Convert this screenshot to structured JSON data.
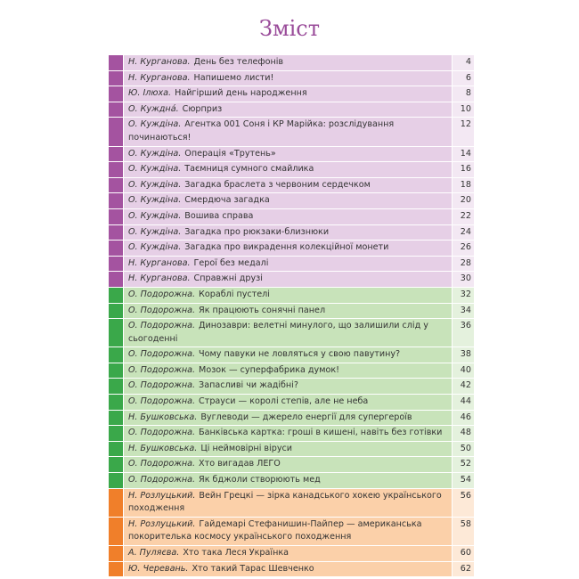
{
  "title": "Зміст",
  "sections": [
    {
      "marker": "#a453a0",
      "background": "#e6cfe6",
      "page_background": "#f3e8f3",
      "rows": [
        {
          "author": "Н. Курганова.",
          "title": "День без телефонів",
          "page": 4
        },
        {
          "author": "Н. Курганова.",
          "title": "Напишемо листи!",
          "page": 6
        },
        {
          "author": "Ю. Ілюха.",
          "title": "Найгірший день народження",
          "page": 8
        },
        {
          "author": "О. Кужднá.",
          "title": "Сюрприз",
          "page": 10
        },
        {
          "author": "О. Куждіна.",
          "title": "Агентка 001 Соня і КР Марійка: розслідування починаються!",
          "page": 12
        },
        {
          "author": "О. Куждіна.",
          "title": "Операція «Трутень»",
          "page": 14
        },
        {
          "author": "О. Куждіна.",
          "title": "Таємниця сумного смайлика",
          "page": 16
        },
        {
          "author": "О. Куждіна.",
          "title": "Загадка браслета з червоним сердечком",
          "page": 18
        },
        {
          "author": "О. Куждіна.",
          "title": "Смердюча загадка",
          "page": 20
        },
        {
          "author": "О. Куждіна.",
          "title": "Вошива справа",
          "page": 22
        },
        {
          "author": "О. Куждіна.",
          "title": "Загадка про рюкзаки-близнюки",
          "page": 24
        },
        {
          "author": "О. Куждіна.",
          "title": "Загадка про викрадення колекційної монети",
          "page": 26
        },
        {
          "author": "Н. Курганова.",
          "title": "Герої без медалі",
          "page": 28
        },
        {
          "author": "Н. Курганова.",
          "title": "Справжні друзі",
          "page": 30
        }
      ]
    },
    {
      "marker": "#3aa84a",
      "background": "#c8e3ba",
      "page_background": "#e4f1dd",
      "rows": [
        {
          "author": "О. Подорожна.",
          "title": "Кораблі пустелі",
          "page": 32
        },
        {
          "author": "О. Подорожна.",
          "title": "Як працюють сонячні панел",
          "page": 34
        },
        {
          "author": "О. Подорожна.",
          "title": "Динозаври: велетні минулого, що залишили слід у сьогоденні",
          "page": 36
        },
        {
          "author": "О. Подорожна.",
          "title": "Чому павуки не ловляться у свою павутину?",
          "page": 38
        },
        {
          "author": "О. Подорожна.",
          "title": "Мозок — суперфабрика думок!",
          "page": 40
        },
        {
          "author": "О. Подорожна.",
          "title": "Запасливі чи жадібні?",
          "page": 42
        },
        {
          "author": "О. Подорожна.",
          "title": "Страуси — королі степів, але не неба",
          "page": 44
        },
        {
          "author": "Н. Бушковська.",
          "title": "Вуглеводи — джерело енергії для супергероїв",
          "page": 46
        },
        {
          "author": "О. Подорожна.",
          "title": "Банківська картка: гроші в кишені, навіть без готівки",
          "page": 48
        },
        {
          "author": "Н. Бушковська.",
          "title": "Ці неймовірні віруси",
          "page": 50
        },
        {
          "author": "О. Подорожна.",
          "title": "Хто вигадав ЛЕГО",
          "page": 52
        },
        {
          "author": "О. Подорожна.",
          "title": "Як бджоли створюють мед",
          "page": 54
        }
      ]
    },
    {
      "marker": "#f07f2a",
      "background": "#fbd0a9",
      "page_background": "#fde9d7",
      "rows": [
        {
          "author": "Н. Розлуцький.",
          "title": "Вейн Грецкі — зірка канадського хокею українського походження",
          "page": 56
        },
        {
          "author": "Н. Розлуцький.",
          "title": "Гайдемарі Стефанишин-Пайпер — американська покорителька космосу українського походження",
          "page": 58
        },
        {
          "author": "А. Пуляєва.",
          "title": "Хто така Леся Українка",
          "page": 60
        },
        {
          "author": "Ю. Черевань.",
          "title": "Хто такий Тарас Шевченко",
          "page": 62
        }
      ]
    }
  ]
}
